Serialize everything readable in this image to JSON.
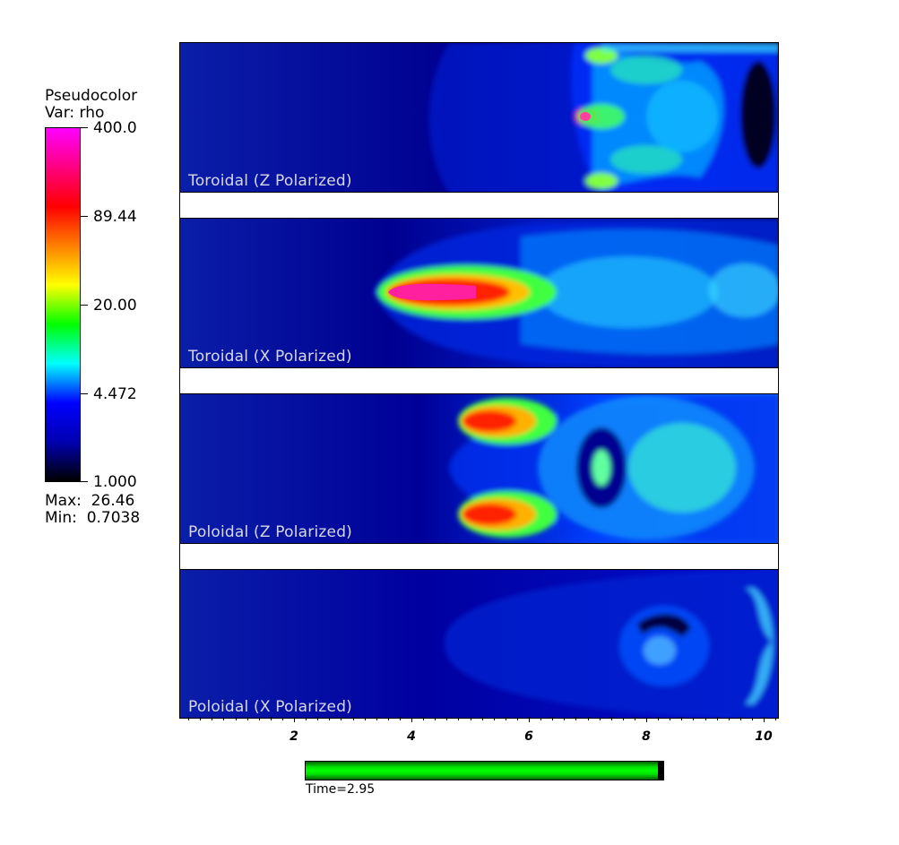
{
  "legend": {
    "title_line1": "Pseudocolor",
    "title_line2": "Var: rho",
    "ticks": [
      "400.0",
      "89.44",
      "20.00",
      "4.472",
      "1.000"
    ],
    "max_label": "Max:  26.46",
    "min_label": "Min:  0.7038",
    "colormap": [
      "#000000",
      "#0000b0",
      "#0000ff",
      "#00ffff",
      "#00ff00",
      "#ffff00",
      "#ff8000",
      "#ff0000",
      "#ff0080",
      "#ff00ff"
    ]
  },
  "panels": [
    {
      "label": "Toroidal (Z Polarized)"
    },
    {
      "label": "Toroidal (X Polarized)"
    },
    {
      "label": "Poloidal (Z Polarized)"
    },
    {
      "label": "Poloidal (X Polarized)"
    }
  ],
  "axis": {
    "tick_labels": [
      "2",
      "4",
      "6",
      "8",
      "10"
    ]
  },
  "time": {
    "label": "Time=2.95",
    "progress": 0.985
  },
  "colors": {
    "background_field": "#0a1ea8",
    "plot_deep": "#00006a"
  }
}
